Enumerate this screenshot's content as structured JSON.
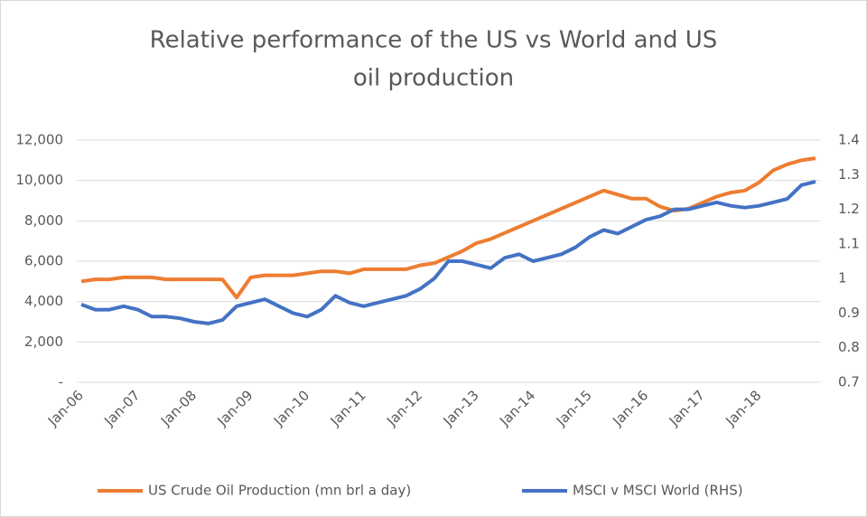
{
  "chart_data": {
    "type": "line",
    "title": [
      "Relative performance  of the US vs World and US",
      "oil production"
    ],
    "categories": [
      "Jan-06",
      null,
      null,
      null,
      "Jan-07",
      null,
      null,
      null,
      "Jan-08",
      null,
      null,
      null,
      "Jan-09",
      null,
      null,
      null,
      "Jan-10",
      null,
      null,
      null,
      "Jan-11",
      null,
      null,
      null,
      "Jan-12",
      null,
      null,
      null,
      "Jan-13",
      null,
      null,
      null,
      "Jan-14",
      null,
      null,
      null,
      "Jan-15",
      null,
      null,
      null,
      "Jan-16",
      null,
      null,
      null,
      "Jan-17",
      null,
      null,
      null,
      "Jan-18",
      null,
      null,
      null,
      null
    ],
    "series": [
      {
        "name": "US Crude Oil Production (mn brl a day)",
        "color": "#ed7d31",
        "axis": "y",
        "values": [
          5000,
          5100,
          5100,
          5200,
          5200,
          5200,
          5100,
          5100,
          5100,
          5100,
          5100,
          4200,
          5200,
          5300,
          5300,
          5300,
          5400,
          5500,
          5500,
          5400,
          5600,
          5600,
          5600,
          5600,
          5800,
          5900,
          6200,
          6500,
          6900,
          7100,
          7400,
          7700,
          8000,
          8300,
          8600,
          8900,
          9200,
          9500,
          9300,
          9100,
          9100,
          8700,
          8500,
          8600,
          8900,
          9200,
          9400,
          9500,
          9900,
          10500,
          10800,
          11000,
          11100
        ]
      },
      {
        "name": "MSCI v MSCI World (RHS)",
        "color": "#4472c4",
        "axis": "y2",
        "values": [
          0.925,
          0.91,
          0.91,
          0.92,
          0.91,
          0.89,
          0.89,
          0.885,
          0.875,
          0.87,
          0.88,
          0.92,
          0.93,
          0.94,
          0.92,
          0.9,
          0.89,
          0.91,
          0.95,
          0.93,
          0.92,
          0.93,
          0.94,
          0.95,
          0.97,
          1.0,
          1.05,
          1.05,
          1.04,
          1.03,
          1.06,
          1.07,
          1.05,
          1.06,
          1.07,
          1.09,
          1.12,
          1.14,
          1.13,
          1.15,
          1.17,
          1.18,
          1.2,
          1.2,
          1.21,
          1.22,
          1.21,
          1.205,
          1.21,
          1.22,
          1.23,
          1.27,
          1.28
        ]
      }
    ],
    "ylim": [
      0,
      12000
    ],
    "yticks": [
      {
        "value": 0,
        "label": "-"
      },
      {
        "value": 2000,
        "label": "2,000"
      },
      {
        "value": 4000,
        "label": "4,000"
      },
      {
        "value": 6000,
        "label": "6,000"
      },
      {
        "value": 8000,
        "label": "8,000"
      },
      {
        "value": 10000,
        "label": "10,000"
      },
      {
        "value": 12000,
        "label": "12,000"
      }
    ],
    "y2lim": [
      0.7,
      1.4
    ],
    "y2ticks": [
      0.7,
      0.8,
      0.9,
      1,
      1.1,
      1.2,
      1.3,
      1.4
    ],
    "grid": true,
    "legend": "bottom"
  }
}
